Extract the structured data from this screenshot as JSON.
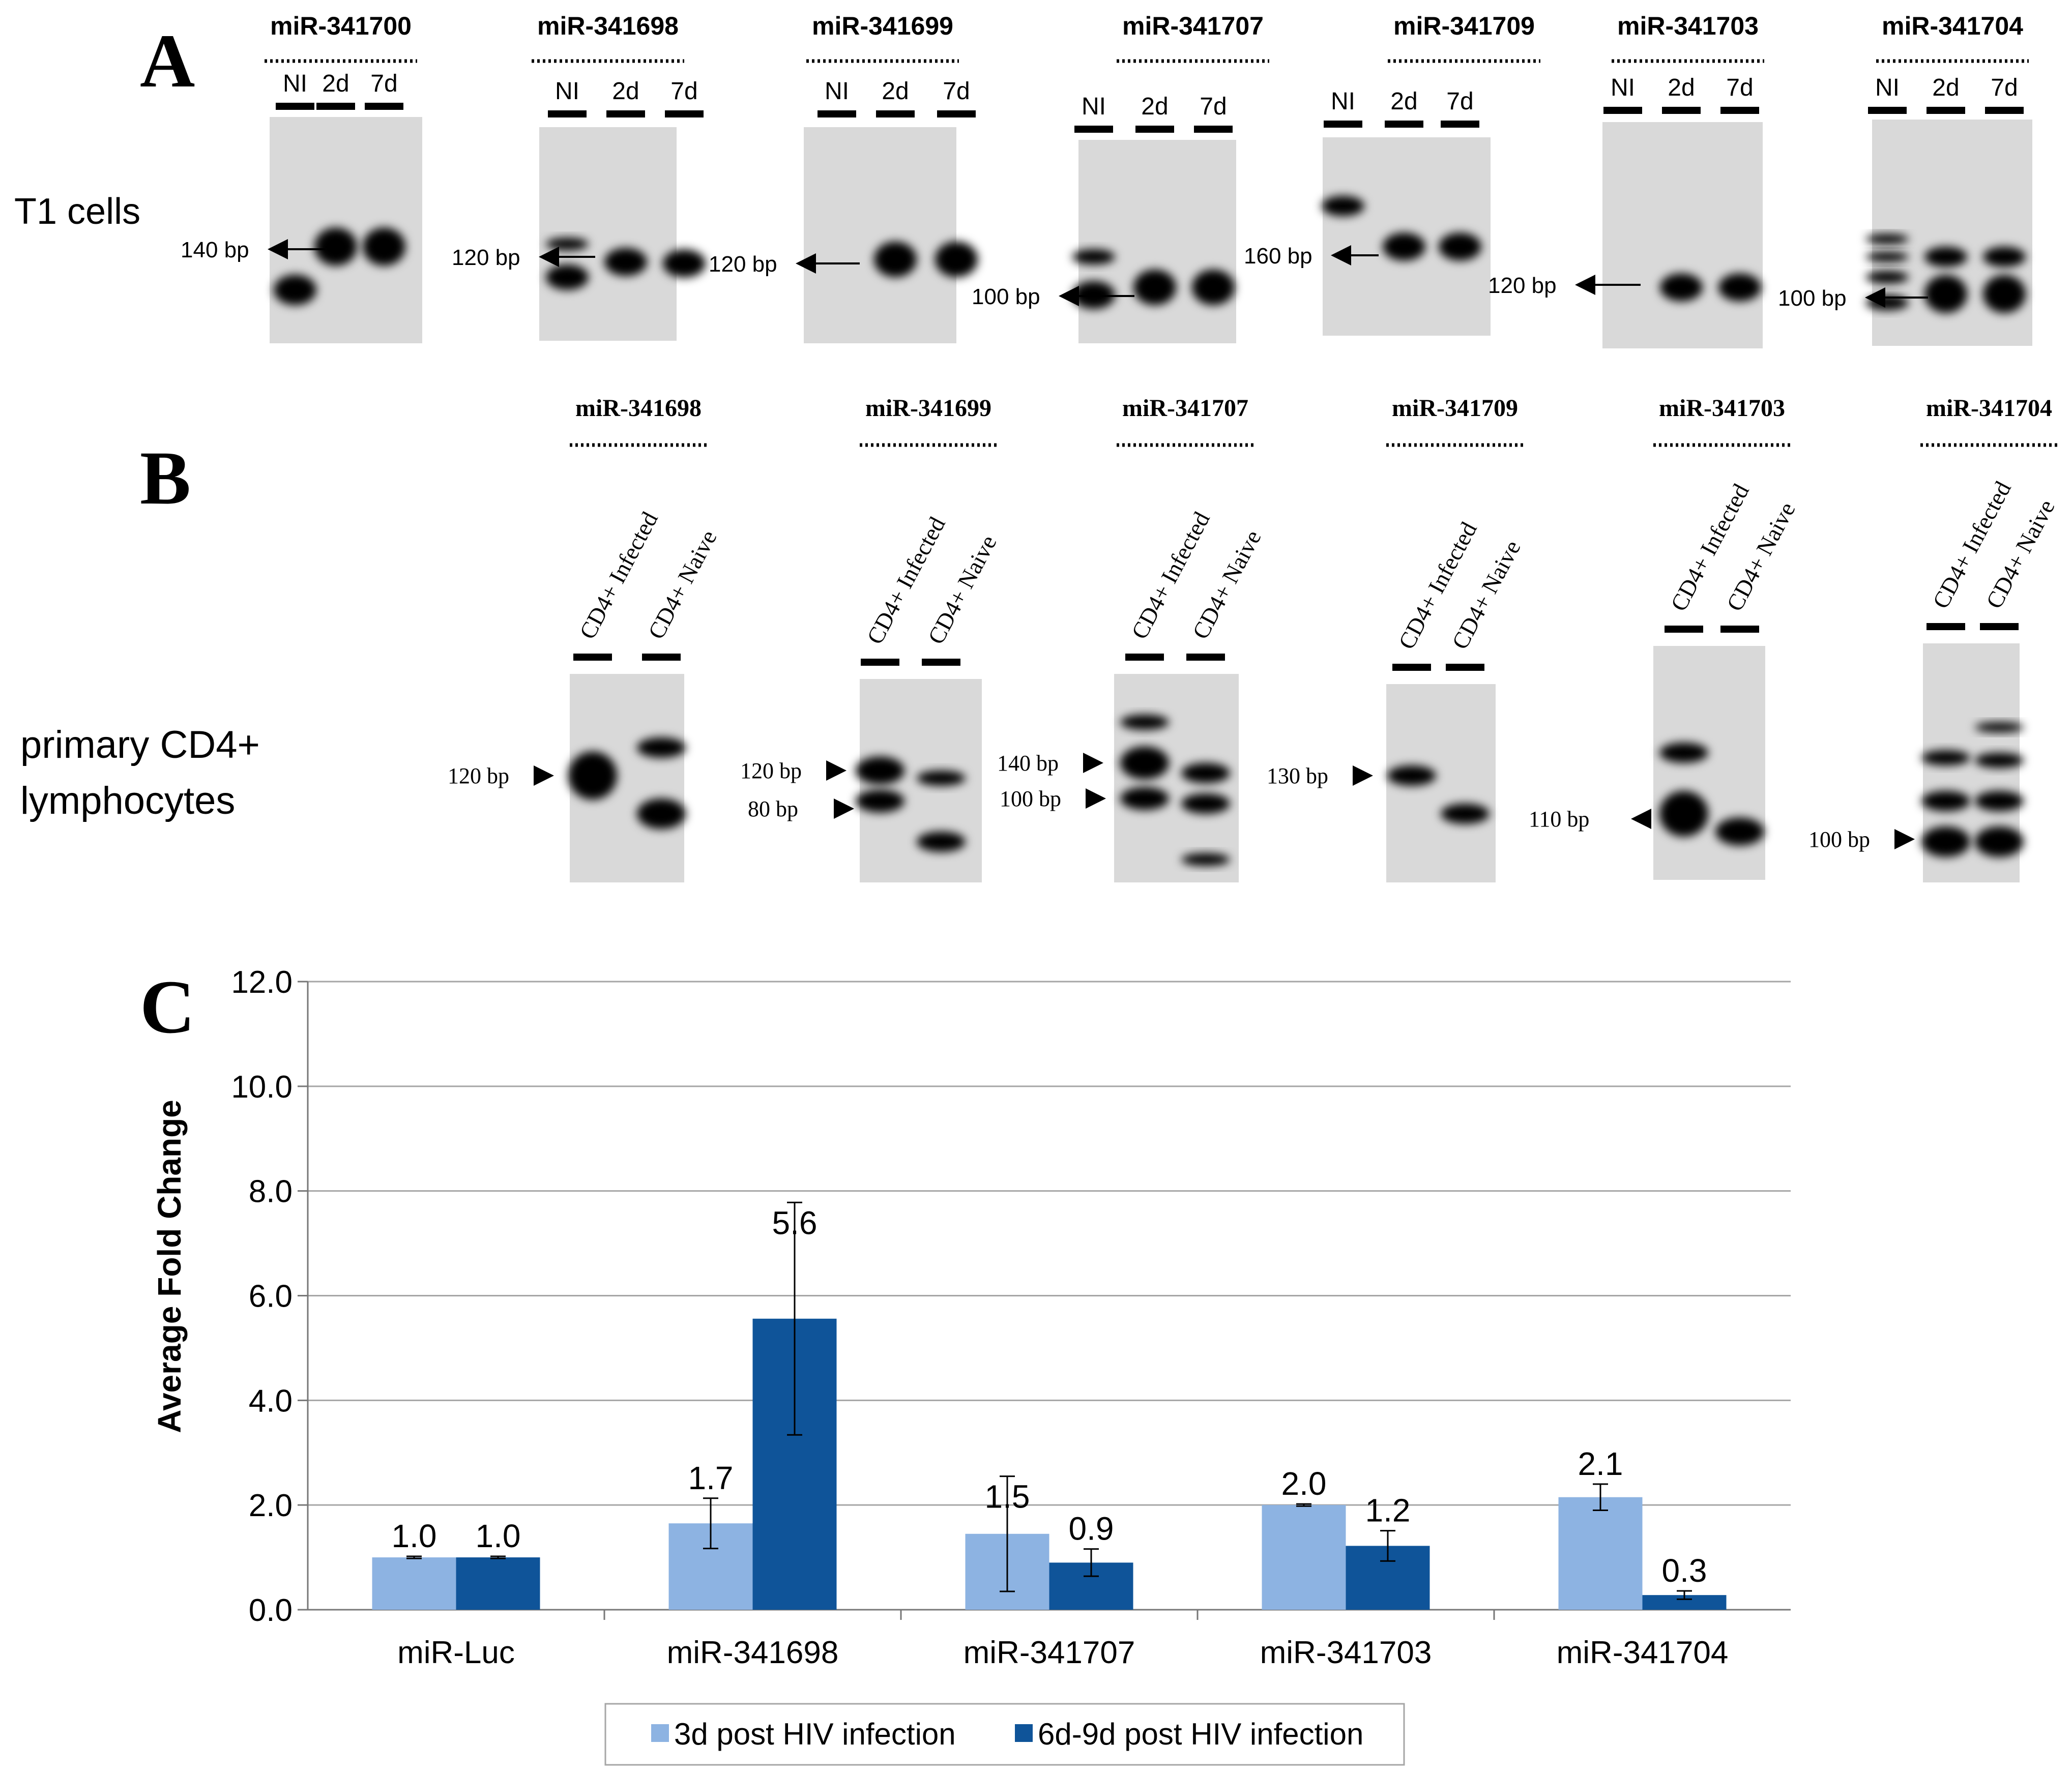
{
  "panels": {
    "a_label": "A",
    "b_label": "B",
    "c_label": "C"
  },
  "row_a": {
    "side_label": "T1 cells",
    "gels": [
      {
        "title": "miR-341700",
        "lanes": [
          "NI",
          "2d",
          "7d"
        ],
        "markers": [
          "140 bp"
        ]
      },
      {
        "title": "miR-341698",
        "lanes": [
          "NI",
          "2d",
          "7d"
        ],
        "markers": [
          "120 bp"
        ]
      },
      {
        "title": "miR-341699",
        "lanes": [
          "NI",
          "2d",
          "7d"
        ],
        "markers": [
          "120 bp"
        ]
      },
      {
        "title": "miR-341707",
        "lanes": [
          "NI",
          "2d",
          "7d"
        ],
        "markers": [
          "100 bp"
        ]
      },
      {
        "title": "miR-341709",
        "lanes": [
          "NI",
          "2d",
          "7d"
        ],
        "markers": [
          "160 bp"
        ]
      },
      {
        "title": "miR-341703",
        "lanes": [
          "NI",
          "2d",
          "7d"
        ],
        "markers": [
          "120 bp"
        ]
      },
      {
        "title": "miR-341704",
        "lanes": [
          "NI",
          "2d",
          "7d"
        ],
        "markers": [
          "100 bp"
        ]
      }
    ]
  },
  "row_b": {
    "side_label_line1": "primary CD4+",
    "side_label_line2": "lymphocytes",
    "gels": [
      {
        "title": "miR-341698",
        "lanes": [
          "CD4+ Infected",
          "CD4+ Naive"
        ],
        "markers": [
          "120 bp"
        ]
      },
      {
        "title": "miR-341699",
        "lanes": [
          "CD4+ Infected",
          "CD4+ Naive"
        ],
        "markers": [
          "120 bp",
          "80 bp"
        ]
      },
      {
        "title": "miR-341707",
        "lanes": [
          "CD4+ Infected",
          "CD4+ Naive"
        ],
        "markers": [
          "140 bp",
          "100 bp"
        ]
      },
      {
        "title": "miR-341709",
        "lanes": [
          "CD4+ Infected",
          "CD4+ Naive"
        ],
        "markers": [
          "130 bp"
        ]
      },
      {
        "title": "miR-341703",
        "lanes": [
          "CD4+ Infected",
          "CD4+ Naive"
        ],
        "markers": [
          "110 bp"
        ]
      },
      {
        "title": "miR-341704",
        "lanes": [
          "CD4+ Infected",
          "CD4+ Naive"
        ],
        "markers": [
          "100 bp"
        ]
      }
    ]
  },
  "colors": {
    "series1": "#8db3e2",
    "series2": "#0f5499",
    "gel_bg": "#d9d9d9",
    "band": "#000000",
    "grid": "#a6a6a6"
  },
  "chart_data": {
    "type": "bar",
    "title": "",
    "ylabel": "Average Fold Change",
    "xlabel": "",
    "ylim": [
      0,
      12
    ],
    "yticks": [
      "0.0",
      "2.0",
      "4.0",
      "6.0",
      "8.0",
      "10.0",
      "12.0"
    ],
    "grid": true,
    "legend_position": "bottom",
    "categories": [
      "miR-Luc",
      "miR-341698",
      "miR-341707",
      "miR-341703",
      "miR-341704"
    ],
    "series": [
      {
        "name": "3d post HIV infection",
        "values": [
          1.0,
          1.65,
          1.45,
          2.0,
          2.15
        ],
        "labels": [
          "1.0",
          "1.7",
          "1.5",
          "2.0",
          "2.1"
        ],
        "error": [
          0.02,
          0.48,
          1.1,
          0.02,
          0.25
        ]
      },
      {
        "name": "6d-9d post HIV infection",
        "values": [
          1.0,
          5.56,
          0.9,
          1.22,
          0.28
        ],
        "labels": [
          "1.0",
          "5.6",
          "0.9",
          "1.2",
          "0.3"
        ],
        "error": [
          0.02,
          2.22,
          0.26,
          0.29,
          0.08
        ]
      }
    ]
  }
}
